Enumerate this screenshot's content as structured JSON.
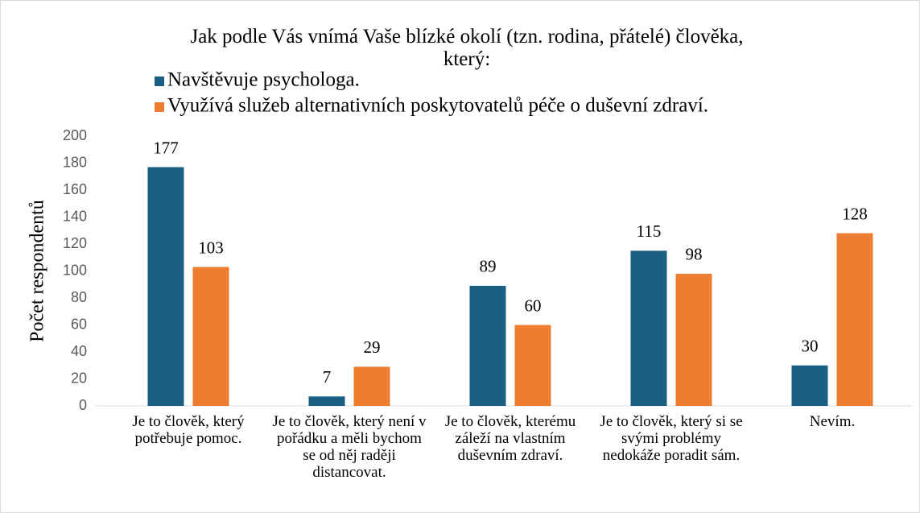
{
  "chart_data": {
    "type": "bar",
    "title": "Jak podle Vás vnímá Vaše blízké okolí (tzn. rodina, přátelé) člověka, který:",
    "y_label": "Počet respondentů",
    "categories": [
      "Je to člověk, který potřebuje pomoc.",
      "Je to člověk, který není v pořádku a měli bychom se od něj raději distancovat.",
      "Je to člověk, kterému záleží na vlastním duševním zdraví.",
      "Je to člověk, který si se svými problémy nedokáže poradit sám.",
      "Nevím."
    ],
    "series": [
      {
        "name": "Navštěvuje psychologa.",
        "color": "#1a5e84",
        "values": [
          177,
          7,
          89,
          115,
          30
        ]
      },
      {
        "name": "Využívá služeb alternativních poskytovatelů péče o duševní zdraví.",
        "color": "#ed7d31",
        "values": [
          103,
          29,
          60,
          98,
          128
        ]
      }
    ],
    "ylim": [
      0,
      200
    ],
    "yticks": [
      0,
      20,
      40,
      60,
      80,
      100,
      120,
      140,
      160,
      180,
      200
    ],
    "grid": false,
    "legend": "top-left"
  }
}
